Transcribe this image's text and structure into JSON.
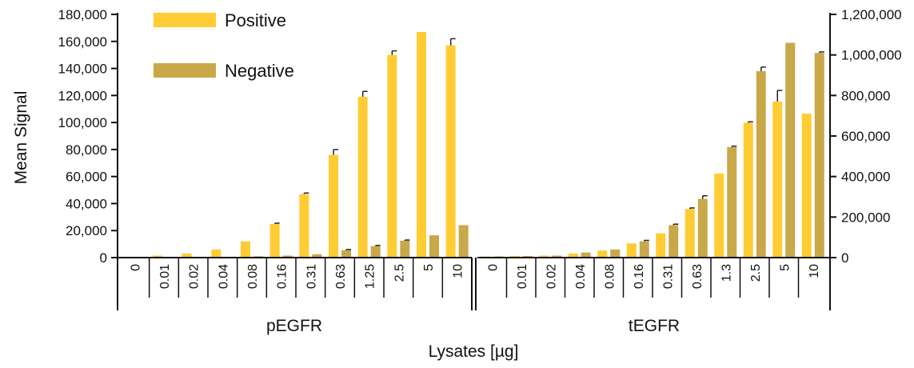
{
  "chart_data": {
    "type": "bar",
    "ylabel": "Mean Signal",
    "xlabel": "Lysates [µg]",
    "legend": {
      "placement": "top-left",
      "entries": [
        {
          "name": "Positive",
          "color": "#FFCC33"
        },
        {
          "name": "Negative",
          "color": "#C9A84A"
        }
      ]
    },
    "y_left": {
      "ylim": [
        0,
        180000
      ],
      "ticks": [
        0,
        20000,
        40000,
        60000,
        80000,
        100000,
        120000,
        140000,
        160000,
        180000
      ],
      "tick_labels": [
        "0",
        "20,000",
        "40,000",
        "60,000",
        "80,000",
        "100,000",
        "120,000",
        "140,000",
        "160,000",
        "180,000"
      ]
    },
    "y_right": {
      "ylim": [
        0,
        1200000
      ],
      "ticks": [
        0,
        200000,
        400000,
        600000,
        800000,
        1000000,
        1200000
      ],
      "tick_labels": [
        "0",
        "200,000",
        "400,000",
        "600,000",
        "800,000",
        "1,000,000",
        "1,200,000"
      ]
    },
    "groups": [
      {
        "label": "pEGFR",
        "axis": "left",
        "categories": [
          "0",
          "0.01",
          "0.02",
          "0.04",
          "0.08",
          "0.16",
          "0.31",
          "0.63",
          "1.25",
          "2.5",
          "5",
          "10"
        ],
        "series": [
          {
            "name": "Positive",
            "values": [
              0,
              1500,
              3000,
              6000,
              12000,
              25000,
              47000,
              76000,
              119000,
              150000,
              167000,
              157000
            ],
            "errors": [
              0,
              0,
              0,
              0,
              0,
              500,
              800,
              4000,
              4000,
              3000,
              0,
              5000
            ]
          },
          {
            "name": "Negative",
            "values": [
              0,
              0,
              0,
              0,
              1000,
              1500,
              2500,
              5500,
              8500,
              12500,
              16500,
              24000
            ],
            "errors": [
              0,
              0,
              0,
              0,
              0,
              0,
              0,
              500,
              500,
              500,
              0,
              0
            ]
          }
        ]
      },
      {
        "label": "tEGFR",
        "axis": "right",
        "categories": [
          "0",
          "0.01",
          "0.02",
          "0.04",
          "0.08",
          "0.16",
          "0.31",
          "0.63",
          "1.3",
          "2.5",
          "5",
          "10"
        ],
        "series": [
          {
            "name": "Positive",
            "values": [
              3000,
              8000,
              10000,
              20000,
              35000,
              70000,
              120000,
              240000,
              415000,
              665000,
              770000,
              710000
            ],
            "errors": [
              0,
              0,
              0,
              0,
              0,
              0,
              0,
              5000,
              0,
              5000,
              55000,
              0
            ]
          },
          {
            "name": "Negative",
            "values": [
              3000,
              8000,
              10000,
              25000,
              40000,
              80000,
              160000,
              290000,
              545000,
              920000,
              1060000,
              1010000
            ],
            "errors": [
              0,
              0,
              0,
              0,
              0,
              5000,
              5000,
              15000,
              5000,
              20000,
              0,
              5000
            ]
          }
        ]
      }
    ]
  }
}
